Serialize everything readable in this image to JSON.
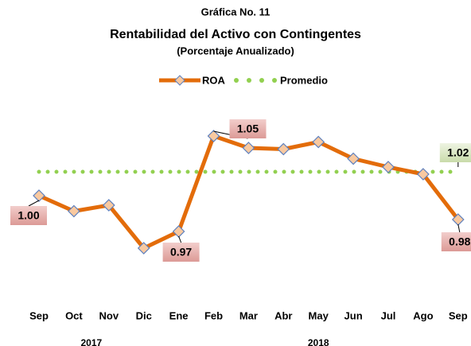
{
  "chart_data": {
    "type": "line",
    "title": "Gráfica No. 11",
    "subtitle": "Rentabilidad del Activo con Contingentes",
    "subtitle2": "(Porcentaje Anualizado)",
    "categories": [
      "Sep",
      "Oct",
      "Nov",
      "Dic",
      "Ene",
      "Feb",
      "Mar",
      "Abr",
      "May",
      "Jun",
      "Jul",
      "Ago",
      "Sep"
    ],
    "groups": [
      {
        "label": "2017",
        "count": 4
      },
      {
        "label": "2018",
        "count": 9
      }
    ],
    "ylim": [
      0.93,
      1.07
    ],
    "series": [
      {
        "name": "ROA",
        "color": "#e36c0a",
        "values": [
          1.0,
          0.987,
          0.992,
          0.956,
          0.97,
          1.05,
          1.04,
          1.039,
          1.045,
          1.031,
          1.024,
          1.018,
          0.98
        ],
        "value_labels": [
          "1.00",
          null,
          null,
          null,
          "0.97",
          "1.05",
          null,
          null,
          null,
          null,
          null,
          null,
          "0.98"
        ]
      },
      {
        "name": "Promedio",
        "color": "#92d050",
        "values": [
          1.02,
          1.02,
          1.02,
          1.02,
          1.02,
          1.02,
          1.02,
          1.02,
          1.02,
          1.02,
          1.02,
          1.02,
          1.02
        ],
        "value_labels": [
          null,
          null,
          null,
          null,
          null,
          null,
          null,
          null,
          null,
          null,
          null,
          null,
          "1.02"
        ]
      }
    ],
    "legend": "top"
  }
}
